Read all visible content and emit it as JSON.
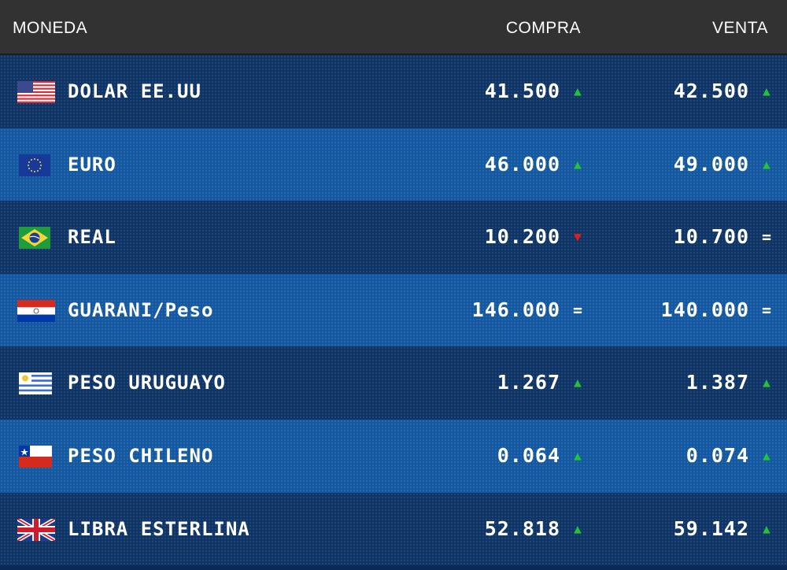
{
  "header": {
    "moneda": "MONEDA",
    "compra": "COMPRA",
    "venta": "VENTA"
  },
  "colors": {
    "up": "#22c23a",
    "down": "#e21b1b",
    "equal": "#ffffff",
    "row_dark": "#0f3466",
    "row_light": "#1358a0",
    "header_bg": "#323232"
  },
  "rows": [
    {
      "flag": "usa-flag-icon",
      "name": "DOLAR EE.UU",
      "compra": "41.500",
      "compra_trend": "up",
      "venta": "42.500",
      "venta_trend": "up"
    },
    {
      "flag": "eu-flag-icon",
      "name": "EURO",
      "compra": "46.000",
      "compra_trend": "up",
      "venta": "49.000",
      "venta_trend": "up"
    },
    {
      "flag": "brazil-flag-icon",
      "name": "REAL",
      "compra": "10.200",
      "compra_trend": "down",
      "venta": "10.700",
      "venta_trend": "equal"
    },
    {
      "flag": "paraguay-flag-icon",
      "name": "GUARANI/Peso",
      "compra": "146.000",
      "compra_trend": "equal",
      "venta": "140.000",
      "venta_trend": "equal"
    },
    {
      "flag": "uruguay-flag-icon",
      "name": "PESO URUGUAYO",
      "compra": "1.267",
      "compra_trend": "up",
      "venta": "1.387",
      "venta_trend": "up"
    },
    {
      "flag": "chile-flag-icon",
      "name": "PESO CHILENO",
      "compra": "0.064",
      "compra_trend": "up",
      "venta": "0.074",
      "venta_trend": "up"
    },
    {
      "flag": "uk-flag-icon",
      "name": "LIBRA ESTERLINA",
      "compra": "52.818",
      "compra_trend": "up",
      "venta": "59.142",
      "venta_trend": "up"
    }
  ]
}
